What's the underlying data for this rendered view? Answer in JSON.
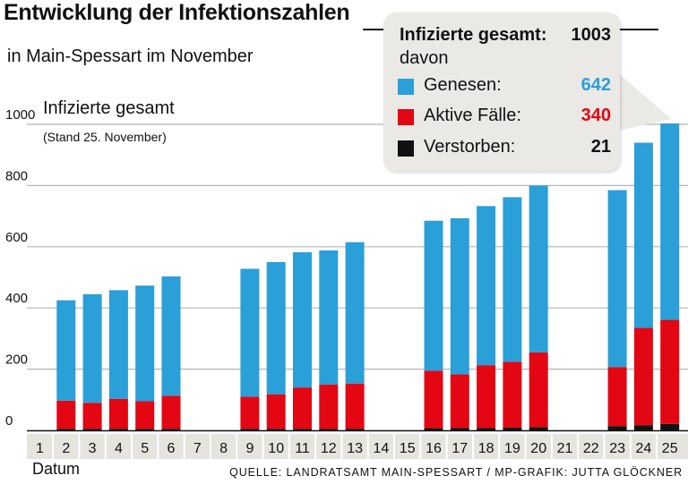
{
  "header": {
    "title": "Entwicklung der Infektionszahlen",
    "subtitle": "in Main-Spessart im November"
  },
  "axis_info": {
    "ylabel": "Infizierte gesamt",
    "note": "(Stand 25. November)",
    "xlabel": "Datum"
  },
  "source": "QUELLE: LANDRATSAMT MAIN-SPESSART / MP-GRAFIK: JUTTA GLÖCKNER",
  "callout": {
    "total_label": "Infizierte gesamt:",
    "total_value": "1003",
    "davon": "davon",
    "items": [
      {
        "label": "Genesen:",
        "value": "642",
        "color": "#2a9fd8"
      },
      {
        "label": "Aktive Fälle:",
        "value": "340",
        "color": "#e30613"
      },
      {
        "label": "Verstorben:",
        "value": "21",
        "color": "#111111"
      }
    ]
  },
  "chart_data": {
    "type": "bar",
    "stacked": true,
    "title": "Entwicklung der Infektionszahlen",
    "subtitle": "in Main-Spessart im November",
    "xlabel": "Datum",
    "ylabel": "Infizierte gesamt",
    "ylim": [
      0,
      1000
    ],
    "yticks": [
      0,
      200,
      400,
      600,
      800,
      1000
    ],
    "categories": [
      "1",
      "2",
      "3",
      "4",
      "5",
      "6",
      "7",
      "8",
      "9",
      "10",
      "11",
      "12",
      "13",
      "14",
      "15",
      "16",
      "17",
      "18",
      "19",
      "20",
      "21",
      "22",
      "23",
      "24",
      "25"
    ],
    "series": [
      {
        "name": "Verstorben",
        "color": "#111111",
        "values": [
          null,
          5,
          5,
          5,
          5,
          5,
          null,
          null,
          5,
          5,
          5,
          5,
          5,
          null,
          null,
          7,
          8,
          8,
          9,
          10,
          null,
          null,
          14,
          17,
          21
        ]
      },
      {
        "name": "Aktive Fälle",
        "color": "#e30613",
        "values": [
          null,
          92,
          85,
          98,
          90,
          108,
          null,
          null,
          105,
          113,
          135,
          145,
          148,
          null,
          null,
          188,
          175,
          205,
          215,
          245,
          null,
          null,
          193,
          318,
          340
        ]
      },
      {
        "name": "Genesen",
        "color": "#2a9fd8",
        "values": [
          null,
          328,
          355,
          355,
          378,
          390,
          null,
          null,
          418,
          432,
          442,
          438,
          462,
          null,
          null,
          490,
          510,
          520,
          538,
          545,
          null,
          null,
          578,
          605,
          642
        ]
      }
    ],
    "grid": true
  }
}
